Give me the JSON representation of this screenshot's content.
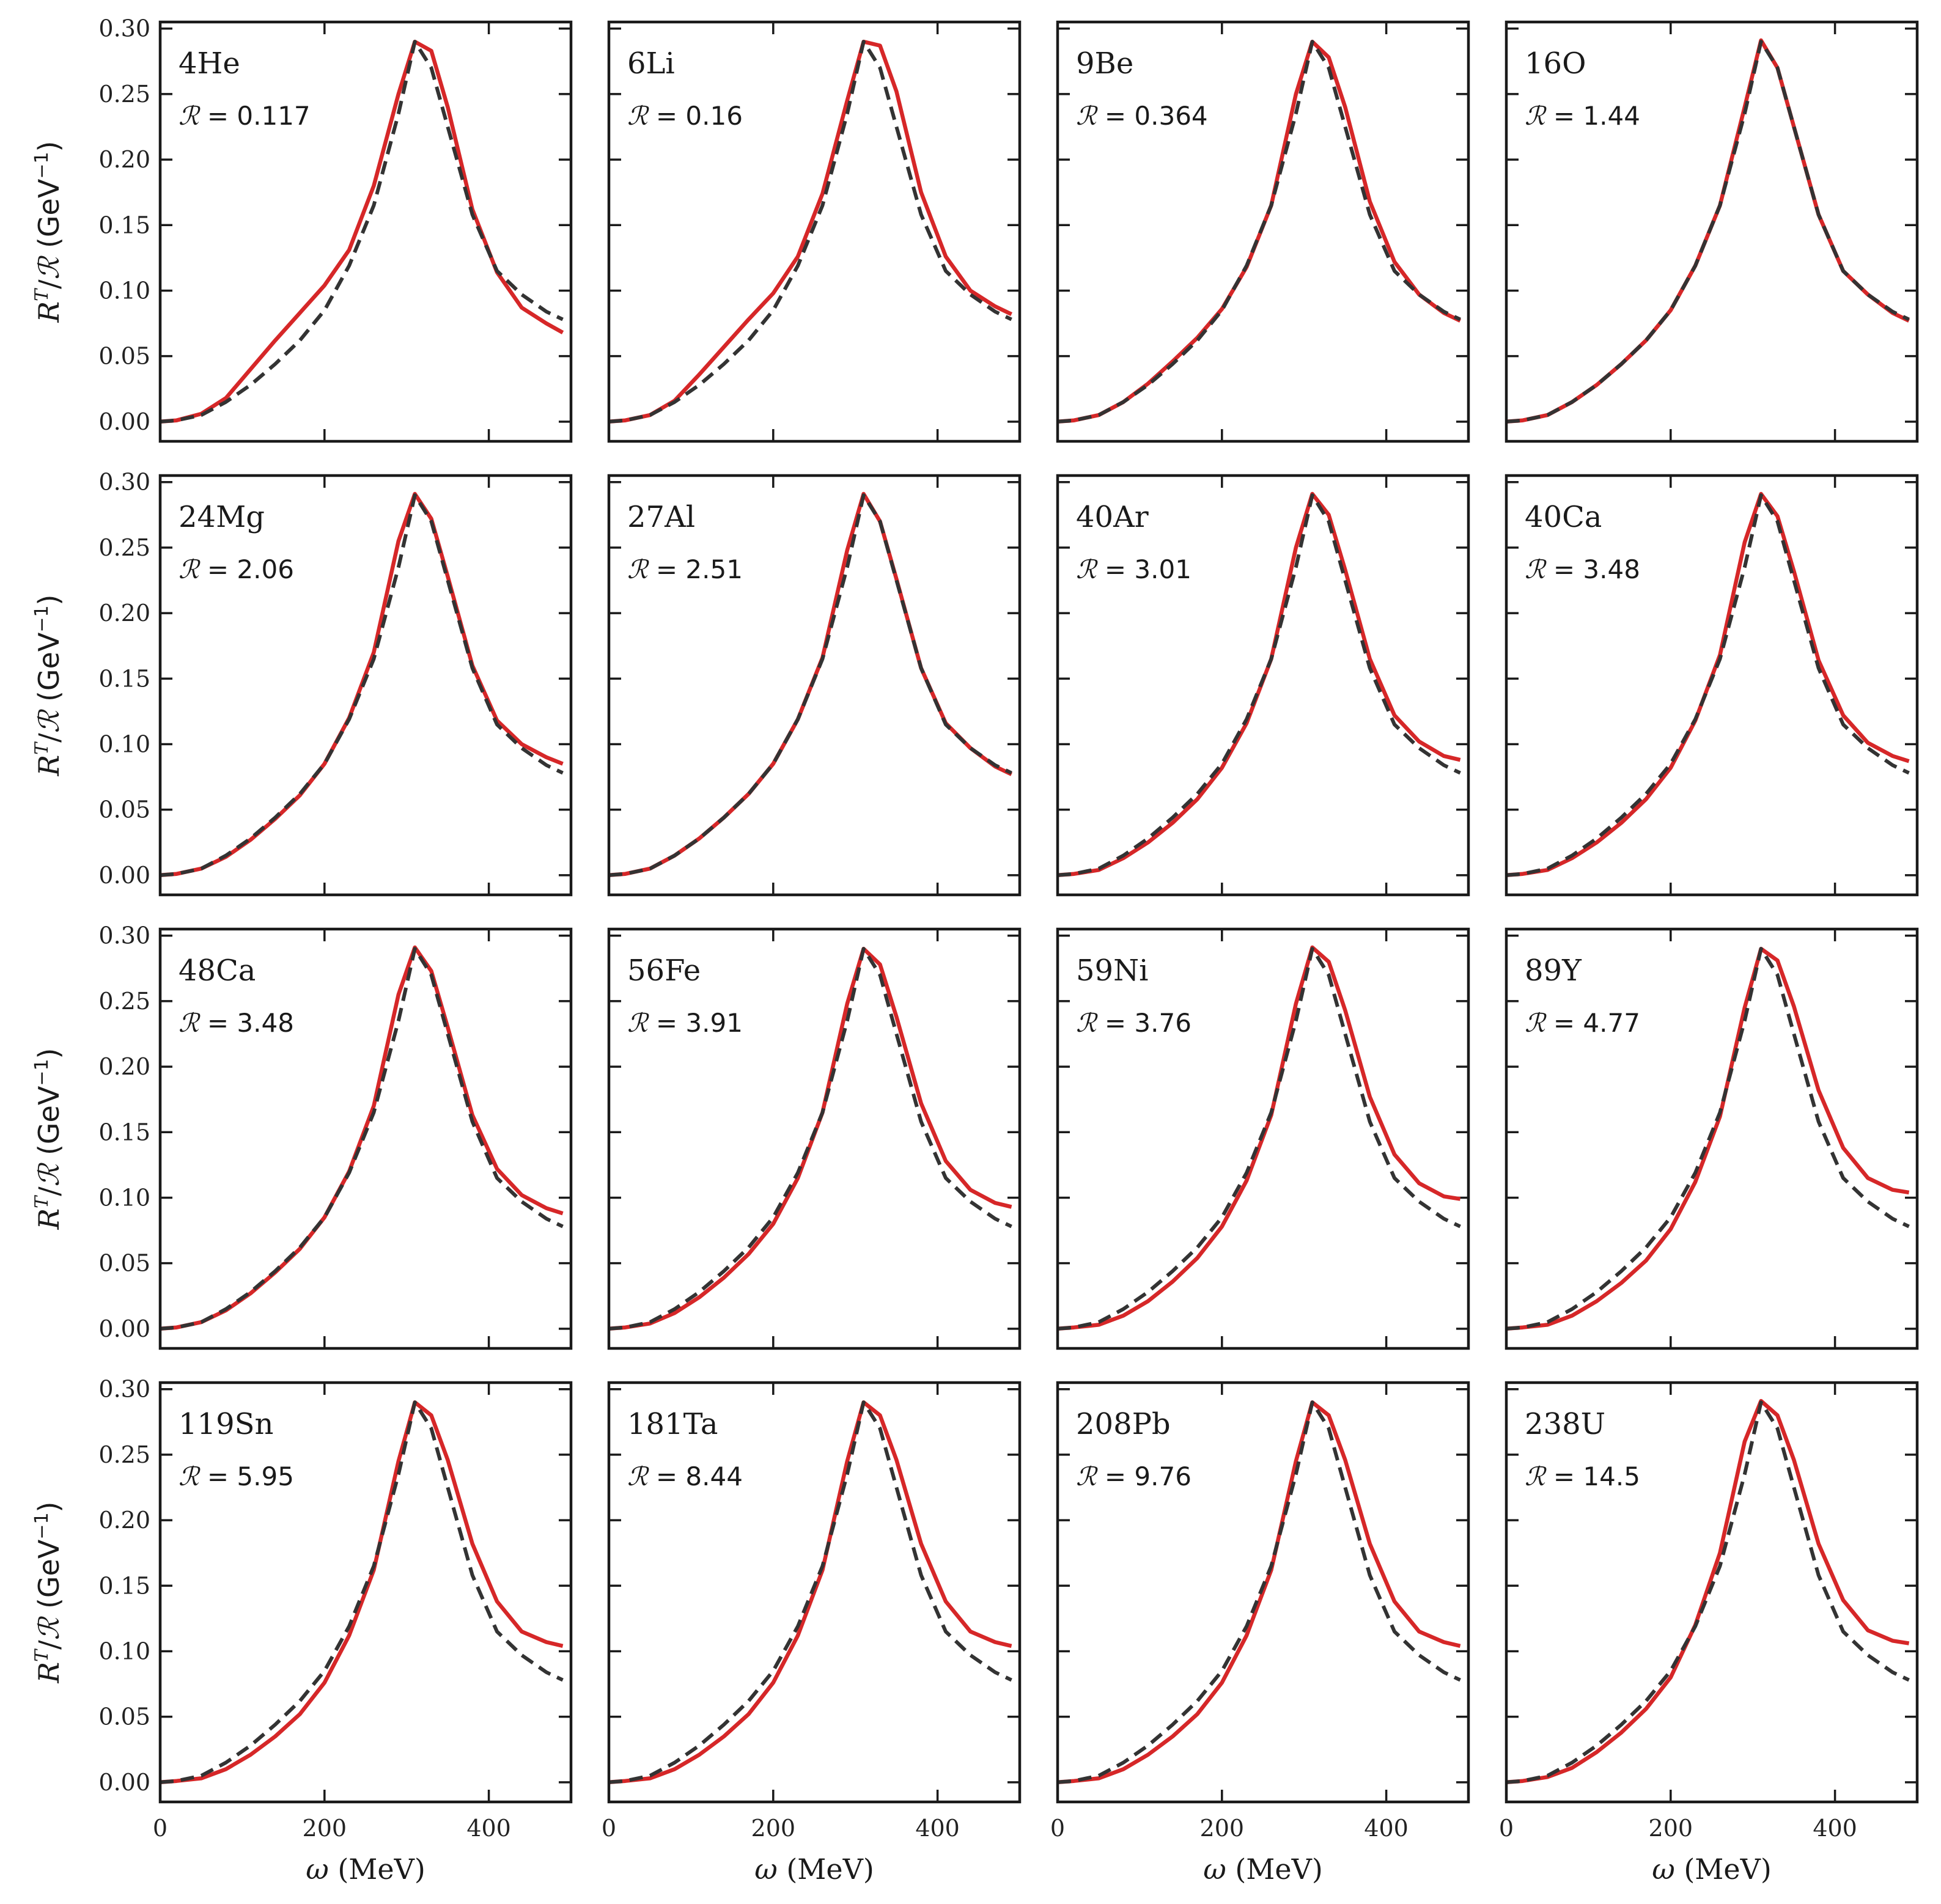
{
  "chart_data": {
    "type": "line",
    "layout": "4x4 grid of panels, shared axes",
    "xlabel_symbol": "ω",
    "xlabel_unit": "(MeV)",
    "ylabel_parts": {
      "r": "R",
      "sup": "T",
      "slash": "/",
      "script": "ℛ",
      "unit_open": " (GeV",
      "unit_sup": "−1",
      "unit_close": ")"
    },
    "xlim": [
      0,
      500
    ],
    "ylim": [
      -0.015,
      0.305
    ],
    "xticks": [
      0,
      200,
      400
    ],
    "xtick_labels": [
      "0",
      "200",
      "400"
    ],
    "yticks": [
      0.0,
      0.05,
      0.1,
      0.15,
      0.2,
      0.25,
      0.3
    ],
    "ytick_labels": [
      "0.00",
      "0.05",
      "0.10",
      "0.15",
      "0.20",
      "0.25",
      "0.30"
    ],
    "x": [
      0,
      20,
      50,
      80,
      110,
      140,
      170,
      200,
      230,
      260,
      290,
      310,
      330,
      350,
      380,
      410,
      440,
      470,
      490
    ],
    "reference_curve": {
      "style": "dashed",
      "color": "#333333",
      "values": [
        0.0,
        0.001,
        0.005,
        0.015,
        0.028,
        0.044,
        0.062,
        0.085,
        0.119,
        0.165,
        0.235,
        0.29,
        0.27,
        0.225,
        0.158,
        0.115,
        0.097,
        0.084,
        0.078
      ]
    },
    "series_color": "#d62728",
    "panels": [
      {
        "nucleus": "4He",
        "ratio_symbol": "ℛ",
        "ratio_text": " = 0.117",
        "values": [
          0.0,
          0.001,
          0.006,
          0.018,
          0.04,
          0.062,
          0.083,
          0.104,
          0.131,
          0.18,
          0.25,
          0.29,
          0.283,
          0.24,
          0.162,
          0.114,
          0.087,
          0.075,
          0.068
        ]
      },
      {
        "nucleus": "6Li",
        "ratio_symbol": "ℛ",
        "ratio_text": " = 0.16",
        "values": [
          0.0,
          0.001,
          0.005,
          0.016,
          0.036,
          0.057,
          0.078,
          0.098,
          0.126,
          0.174,
          0.245,
          0.29,
          0.287,
          0.252,
          0.175,
          0.126,
          0.1,
          0.088,
          0.082
        ]
      },
      {
        "nucleus": "9Be",
        "ratio_symbol": "ℛ",
        "ratio_text": " = 0.364",
        "values": [
          0.0,
          0.001,
          0.005,
          0.015,
          0.029,
          0.046,
          0.064,
          0.086,
          0.118,
          0.165,
          0.25,
          0.29,
          0.278,
          0.24,
          0.168,
          0.122,
          0.097,
          0.083,
          0.077
        ]
      },
      {
        "nucleus": "16O",
        "ratio_symbol": "ℛ",
        "ratio_text": " = 1.44",
        "values": [
          0.0,
          0.001,
          0.005,
          0.015,
          0.028,
          0.044,
          0.062,
          0.085,
          0.119,
          0.165,
          0.24,
          0.291,
          0.27,
          0.225,
          0.158,
          0.115,
          0.097,
          0.083,
          0.077
        ]
      },
      {
        "nucleus": "24Mg",
        "ratio_symbol": "ℛ",
        "ratio_text": " = 2.06",
        "values": [
          0.0,
          0.001,
          0.005,
          0.014,
          0.027,
          0.043,
          0.061,
          0.085,
          0.12,
          0.17,
          0.255,
          0.291,
          0.272,
          0.228,
          0.16,
          0.118,
          0.1,
          0.09,
          0.085
        ]
      },
      {
        "nucleus": "27Al",
        "ratio_symbol": "ℛ",
        "ratio_text": " = 2.51",
        "values": [
          0.0,
          0.001,
          0.005,
          0.015,
          0.028,
          0.044,
          0.062,
          0.085,
          0.119,
          0.166,
          0.248,
          0.291,
          0.27,
          0.226,
          0.158,
          0.116,
          0.097,
          0.083,
          0.077
        ]
      },
      {
        "nucleus": "40Ar",
        "ratio_symbol": "ℛ",
        "ratio_text": " = 3.01",
        "values": [
          0.0,
          0.001,
          0.004,
          0.013,
          0.025,
          0.04,
          0.058,
          0.082,
          0.116,
          0.165,
          0.25,
          0.291,
          0.275,
          0.233,
          0.165,
          0.122,
          0.102,
          0.091,
          0.088
        ]
      },
      {
        "nucleus": "40Ca",
        "ratio_symbol": "ℛ",
        "ratio_text": " = 3.48",
        "values": [
          0.0,
          0.001,
          0.004,
          0.013,
          0.025,
          0.04,
          0.058,
          0.082,
          0.118,
          0.168,
          0.254,
          0.291,
          0.274,
          0.232,
          0.164,
          0.122,
          0.101,
          0.091,
          0.087
        ]
      },
      {
        "nucleus": "48Ca",
        "ratio_symbol": "ℛ",
        "ratio_text": " = 3.48",
        "values": [
          0.0,
          0.001,
          0.005,
          0.014,
          0.027,
          0.043,
          0.061,
          0.085,
          0.12,
          0.17,
          0.255,
          0.291,
          0.273,
          0.23,
          0.163,
          0.122,
          0.102,
          0.092,
          0.088
        ]
      },
      {
        "nucleus": "56Fe",
        "ratio_symbol": "ℛ",
        "ratio_text": " = 3.91",
        "values": [
          0.0,
          0.001,
          0.004,
          0.012,
          0.024,
          0.039,
          0.057,
          0.08,
          0.115,
          0.165,
          0.248,
          0.29,
          0.278,
          0.238,
          0.172,
          0.128,
          0.106,
          0.096,
          0.093
        ]
      },
      {
        "nucleus": "59Ni",
        "ratio_symbol": "ℛ",
        "ratio_text": " = 3.76",
        "values": [
          0.0,
          0.001,
          0.003,
          0.01,
          0.021,
          0.036,
          0.054,
          0.078,
          0.113,
          0.163,
          0.248,
          0.291,
          0.28,
          0.243,
          0.177,
          0.133,
          0.111,
          0.101,
          0.099
        ]
      },
      {
        "nucleus": "89Y",
        "ratio_symbol": "ℛ",
        "ratio_text": " = 4.77",
        "values": [
          0.0,
          0.001,
          0.003,
          0.01,
          0.021,
          0.035,
          0.052,
          0.076,
          0.112,
          0.162,
          0.245,
          0.29,
          0.281,
          0.246,
          0.182,
          0.138,
          0.115,
          0.106,
          0.104
        ]
      },
      {
        "nucleus": "119Sn",
        "ratio_symbol": "ℛ",
        "ratio_text": " = 5.95",
        "values": [
          0.0,
          0.001,
          0.003,
          0.01,
          0.021,
          0.035,
          0.052,
          0.076,
          0.112,
          0.162,
          0.245,
          0.29,
          0.28,
          0.246,
          0.182,
          0.138,
          0.115,
          0.107,
          0.104
        ]
      },
      {
        "nucleus": "181Ta",
        "ratio_symbol": "ℛ",
        "ratio_text": " = 8.44",
        "values": [
          0.0,
          0.001,
          0.003,
          0.01,
          0.021,
          0.035,
          0.052,
          0.076,
          0.112,
          0.162,
          0.245,
          0.29,
          0.28,
          0.246,
          0.182,
          0.138,
          0.115,
          0.107,
          0.104
        ]
      },
      {
        "nucleus": "208Pb",
        "ratio_symbol": "ℛ",
        "ratio_text": " = 9.76",
        "values": [
          0.0,
          0.001,
          0.003,
          0.01,
          0.021,
          0.035,
          0.052,
          0.076,
          0.112,
          0.162,
          0.245,
          0.29,
          0.28,
          0.246,
          0.182,
          0.138,
          0.115,
          0.107,
          0.104
        ]
      },
      {
        "nucleus": "238U",
        "ratio_symbol": "ℛ",
        "ratio_text": " = 14.5",
        "values": [
          0.0,
          0.001,
          0.004,
          0.011,
          0.023,
          0.038,
          0.056,
          0.08,
          0.12,
          0.175,
          0.26,
          0.291,
          0.28,
          0.246,
          0.182,
          0.139,
          0.116,
          0.108,
          0.106
        ]
      }
    ]
  }
}
